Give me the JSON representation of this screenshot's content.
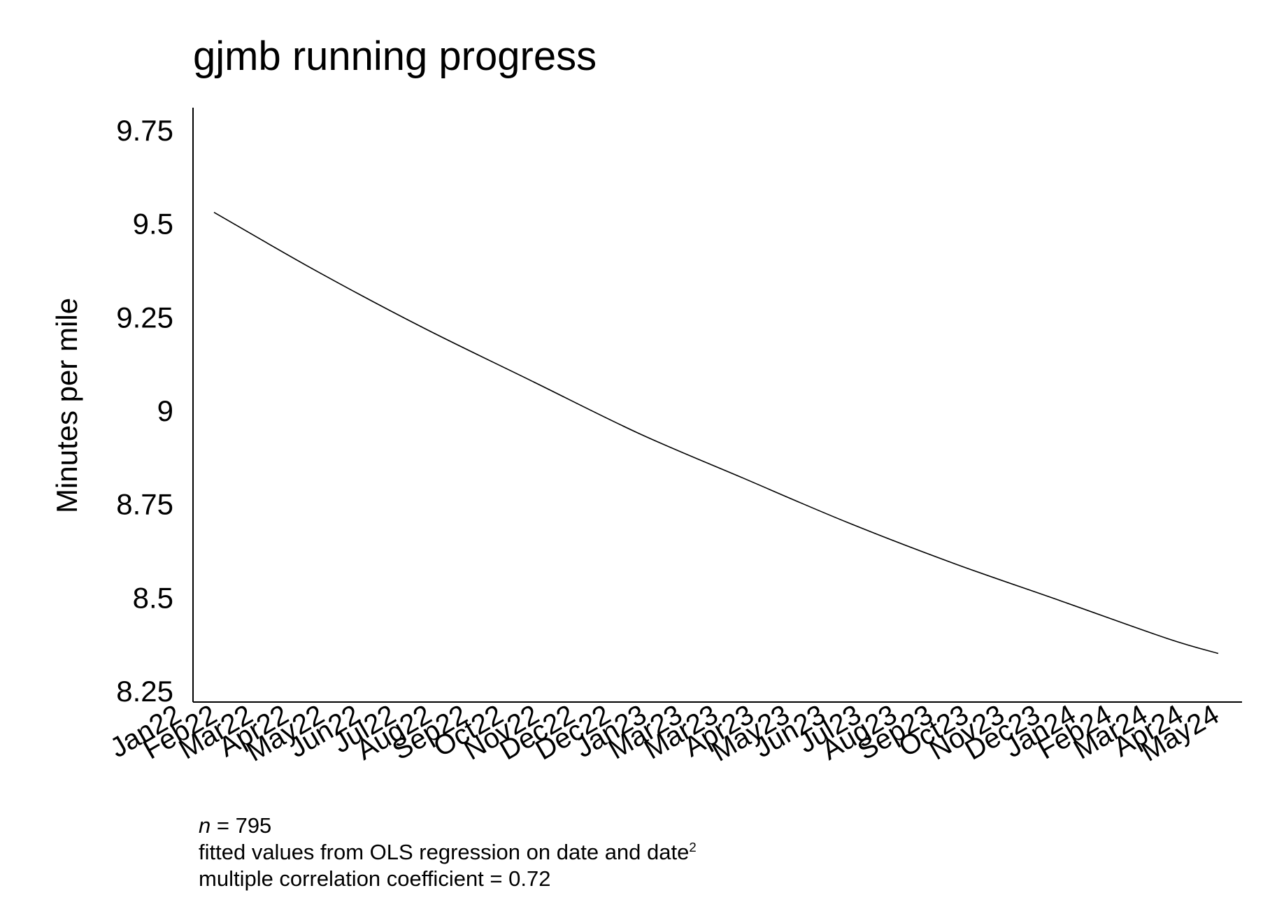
{
  "chart_data": {
    "type": "line",
    "title": "gjmb running progress",
    "xlabel": "",
    "ylabel": "Minutes per mile",
    "ylim": [
      8.22,
      9.81
    ],
    "yticks": [
      8.25,
      8.5,
      8.75,
      9,
      9.25,
      9.5,
      9.75
    ],
    "ytick_labels": [
      "8.25",
      "8.5",
      "8.75",
      "9",
      "9.25",
      "9.5",
      "9.75"
    ],
    "x_tick_labels": [
      "Jan22",
      "Feb22",
      "Mar22",
      "Apr22",
      "May22",
      "Jun22",
      "Jul22",
      "Aug22",
      "Sep22",
      "Oct22",
      "Nov22",
      "Dec22",
      "Dec22",
      "Jan23",
      "Mar23",
      "Mar23",
      "Apr23",
      "May23",
      "Jun23",
      "Jul23",
      "Aug23",
      "Sep23",
      "Oct23",
      "Nov23",
      "Dec23",
      "Jan24",
      "Feb24",
      "Mar24",
      "Apr24",
      "May24"
    ],
    "series": [
      {
        "x": [
          "2022-01-01",
          "2022-04-01",
          "2022-07-01",
          "2022-10-01",
          "2023-01-01",
          "2023-04-01",
          "2023-07-01",
          "2023-10-01",
          "2024-01-01",
          "2024-04-01",
          "2024-05-15"
        ],
        "values": [
          9.53,
          9.37,
          9.22,
          9.08,
          8.94,
          8.82,
          8.7,
          8.59,
          8.49,
          8.39,
          8.35
        ]
      }
    ],
    "grid": false,
    "legend": "none"
  },
  "notes": {
    "n_label": "n",
    "n_value": " = 795",
    "fit_text": "fitted values from OLS regression on date and date",
    "fit_sup": "2",
    "corr_text": "multiple correlation coefficient = 0.72"
  }
}
